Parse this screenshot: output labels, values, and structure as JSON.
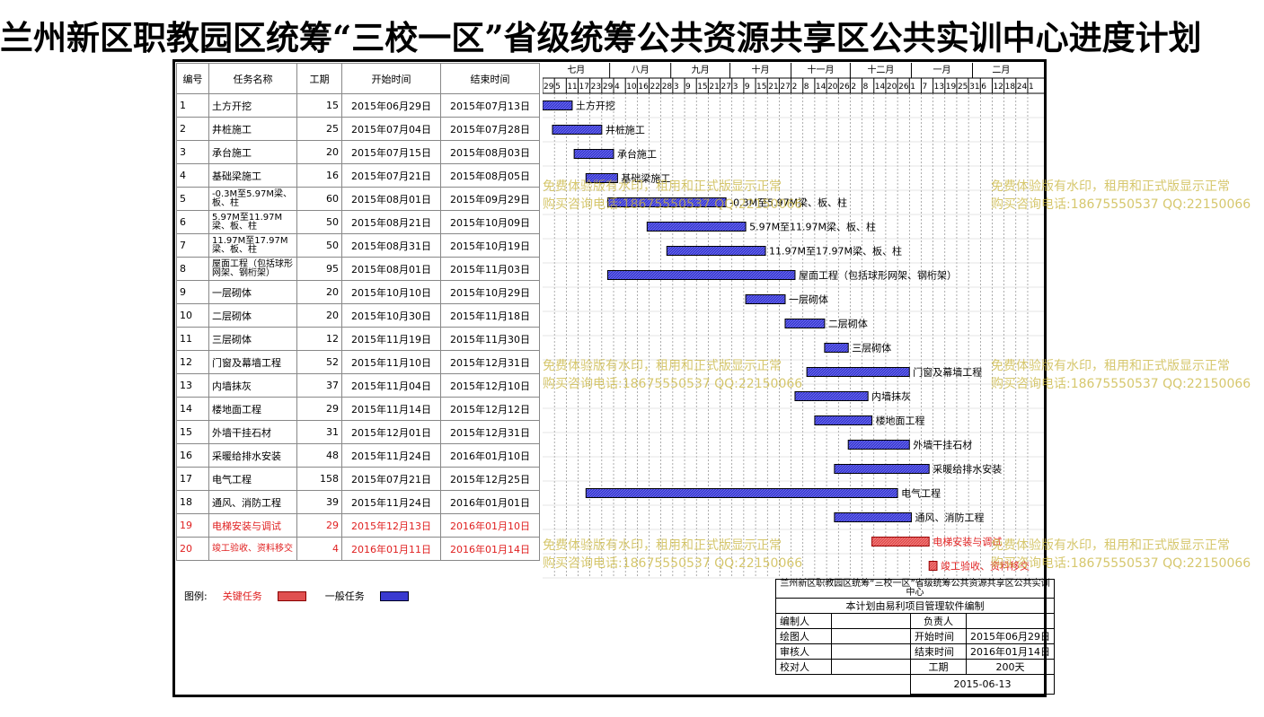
{
  "title": "兰州新区职教园区统筹“三校一区”省级统筹公共资源共享区公共实训中心进度计划",
  "table": {
    "headers": {
      "no": "编号",
      "name": "任务名称",
      "duration": "工期",
      "start": "开始时间",
      "end": "结束时间"
    },
    "rows": [
      {
        "no": "1",
        "name": "土方开挖",
        "duration": "15",
        "start": "2015年06月29日",
        "end": "2015年07月13日",
        "critical": false
      },
      {
        "no": "2",
        "name": "井桩施工",
        "duration": "25",
        "start": "2015年07月04日",
        "end": "2015年07月28日",
        "critical": false
      },
      {
        "no": "3",
        "name": "承台施工",
        "duration": "20",
        "start": "2015年07月15日",
        "end": "2015年08月03日",
        "critical": false
      },
      {
        "no": "4",
        "name": "基础梁施工",
        "duration": "16",
        "start": "2015年07月21日",
        "end": "2015年08月05日",
        "critical": false
      },
      {
        "no": "5",
        "name": "-0.3M至5.97M梁、板、柱",
        "duration": "60",
        "start": "2015年08月01日",
        "end": "2015年09月29日",
        "critical": false
      },
      {
        "no": "6",
        "name": "5.97M至11.97M梁、板、柱",
        "duration": "50",
        "start": "2015年08月21日",
        "end": "2015年10月09日",
        "critical": false
      },
      {
        "no": "7",
        "name": "11.97M至17.97M梁、板、柱",
        "duration": "50",
        "start": "2015年08月31日",
        "end": "2015年10月19日",
        "critical": false
      },
      {
        "no": "8",
        "name": "屋面工程（包括球形网架、钢桁架）",
        "duration": "95",
        "start": "2015年08月01日",
        "end": "2015年11月03日",
        "critical": false
      },
      {
        "no": "9",
        "name": "一层砌体",
        "duration": "20",
        "start": "2015年10月10日",
        "end": "2015年10月29日",
        "critical": false
      },
      {
        "no": "10",
        "name": "二层砌体",
        "duration": "20",
        "start": "2015年10月30日",
        "end": "2015年11月18日",
        "critical": false
      },
      {
        "no": "11",
        "name": "三层砌体",
        "duration": "12",
        "start": "2015年11月19日",
        "end": "2015年11月30日",
        "critical": false
      },
      {
        "no": "12",
        "name": "门窗及幕墙工程",
        "duration": "52",
        "start": "2015年11月10日",
        "end": "2015年12月31日",
        "critical": false
      },
      {
        "no": "13",
        "name": "内墙抹灰",
        "duration": "37",
        "start": "2015年11月04日",
        "end": "2015年12月10日",
        "critical": false
      },
      {
        "no": "14",
        "name": "楼地面工程",
        "duration": "29",
        "start": "2015年11月14日",
        "end": "2015年12月12日",
        "critical": false
      },
      {
        "no": "15",
        "name": "外墙干挂石材",
        "duration": "31",
        "start": "2015年12月01日",
        "end": "2015年12月31日",
        "critical": false
      },
      {
        "no": "16",
        "name": "采暖给排水安装",
        "duration": "48",
        "start": "2015年11月24日",
        "end": "2016年01月10日",
        "critical": false
      },
      {
        "no": "17",
        "name": "电气工程",
        "duration": "158",
        "start": "2015年07月21日",
        "end": "2015年12月25日",
        "critical": false
      },
      {
        "no": "18",
        "name": "通风、消防工程",
        "duration": "39",
        "start": "2015年11月24日",
        "end": "2016年01月01日",
        "critical": false
      },
      {
        "no": "19",
        "name": "电梯安装与调试",
        "duration": "29",
        "start": "2015年12月13日",
        "end": "2016年01月10日",
        "critical": true
      },
      {
        "no": "20",
        "name": "竣工验收、资料移交",
        "duration": "4",
        "start": "2016年01月11日",
        "end": "2016年01月14日",
        "critical": true
      }
    ]
  },
  "gantt": {
    "months": [
      "七月",
      "八月",
      "九月",
      "十月",
      "十一月",
      "十二月",
      "一月",
      "二月"
    ],
    "days": [
      "29",
      "5",
      "11",
      "17",
      "23",
      "29",
      "4",
      "10",
      "16",
      "22",
      "28",
      "3",
      "9",
      "15",
      "21",
      "27",
      "3",
      "9",
      "15",
      "21",
      "27",
      "2",
      "8",
      "14",
      "20",
      "26",
      "2",
      "8",
      "14",
      "20",
      "26",
      "1",
      "7",
      "13",
      "19",
      "25",
      "31",
      "6",
      "12",
      "18",
      "24",
      "1"
    ],
    "bar_labels": [
      "土方开挖",
      "井桩施工",
      "承台施工",
      "基础梁施工",
      "-0.3M至5.97M梁、板、柱",
      "5.97M至11.97M梁、板、柱",
      "11.97M至17.97M梁、板、柱",
      "屋面工程（包括球形网架、钢桁架）",
      "一层砌体",
      "二层砌体",
      "三层砌体",
      "门窗及幕墙工程",
      "内墙抹灰",
      "楼地面工程",
      "外墙干挂石材",
      "采暖给排水安装",
      "电气工程",
      "通风、消防工程",
      "电梯安装与调试",
      "竣工验收、资料移交"
    ],
    "normal_color": "#3a3ad0",
    "critical_color": "#e05050"
  },
  "watermark": {
    "line1": "免费体验版有水印，租用和正式版显示正常",
    "line2": "购买咨询电话:18675550537 QQ:22150066"
  },
  "legend": {
    "label": "图例:",
    "critical": "关键任务",
    "normal": "一般任务"
  },
  "info": {
    "project": "兰州新区职教园区统筹“三校一区”省级统筹公共资源共享区公共实训中心",
    "software": "本计划由易利项目管理软件编制",
    "compiler": "编制人",
    "owner": "负责人",
    "drafter": "绘图人",
    "start_label": "开始时间",
    "start_value": "2015年06月29日",
    "reviewer": "审核人",
    "end_label": "结束时间",
    "end_value": "2016年01月14日",
    "checker": "校对人",
    "duration_label": "工期",
    "duration_value": "200天",
    "date": "2015-06-13"
  }
}
